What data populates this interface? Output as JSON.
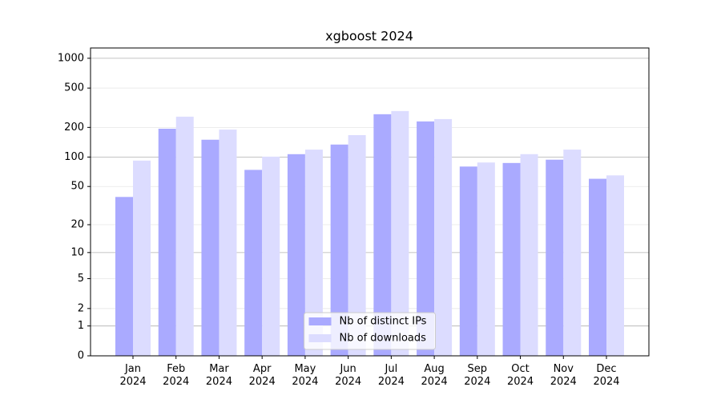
{
  "chart_data": {
    "type": "bar",
    "title": "xgboost 2024",
    "categories": [
      "Jan 2024",
      "Feb 2024",
      "Mar 2024",
      "Apr 2024",
      "May 2024",
      "Jun 2024",
      "Jul 2024",
      "Aug 2024",
      "Sep 2024",
      "Oct 2024",
      "Nov 2024",
      "Dec 2024"
    ],
    "series": [
      {
        "name": "Nb of distinct IPs",
        "color": "#aaaaff",
        "values": [
          39,
          194,
          150,
          74,
          107,
          134,
          272,
          230,
          80,
          87,
          94,
          60
        ]
      },
      {
        "name": "Nb of downloads",
        "color": "#dcdcff",
        "values": [
          92,
          257,
          190,
          101,
          119,
          167,
          293,
          243,
          88,
          107,
          119,
          65
        ]
      }
    ],
    "yscale": "log1p",
    "ylim": [
      0,
      1270
    ],
    "yticks": [
      0,
      1,
      2,
      5,
      10,
      20,
      50,
      100,
      200,
      500,
      1000
    ],
    "grid": true,
    "legend": "lower center"
  }
}
